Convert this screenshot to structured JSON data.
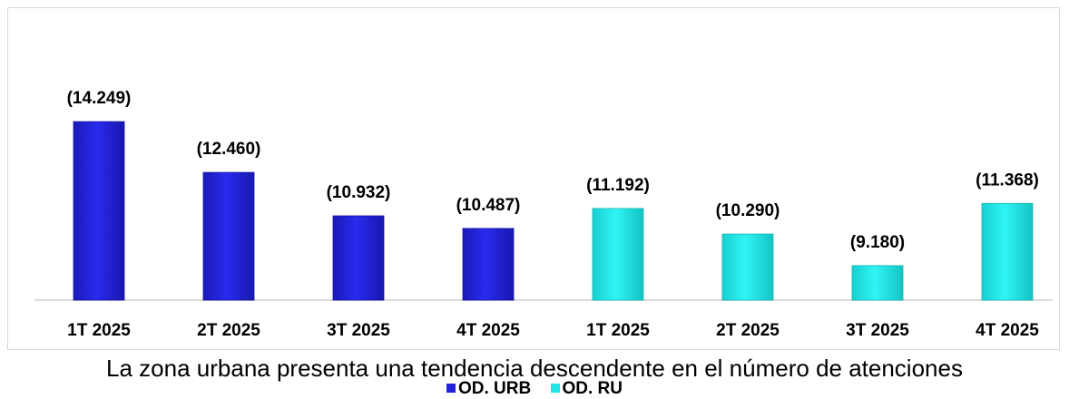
{
  "chart_data": {
    "type": "bar",
    "title": "",
    "xlabel": "",
    "ylabel": "",
    "ylim": [
      0,
      15000
    ],
    "grid": false,
    "legend_position": "bottom",
    "categories": [
      "1T 2025",
      "2T 2025",
      "3T 2025",
      "4T 2025",
      "1T 2025",
      "2T 2025",
      "3T 2025",
      "4T 2025"
    ],
    "values": [
      14249,
      12460,
      10932,
      10487,
      11192,
      10290,
      9180,
      11368
    ],
    "value_labels": [
      "(14.249)",
      "(12.460)",
      "(10.932)",
      "(10.487)",
      "(11.192)",
      "(10.290)",
      "(9.180)",
      "(11.368)"
    ],
    "bar_series": [
      0,
      0,
      0,
      0,
      1,
      1,
      1,
      1
    ],
    "legend": [
      {
        "label": "OD. URB",
        "color": "#2222dd"
      },
      {
        "label": "OD. RU",
        "color": "#22e6e6"
      }
    ]
  },
  "caption": "La zona urbana presenta una tendencia descendente en el número de atenciones"
}
